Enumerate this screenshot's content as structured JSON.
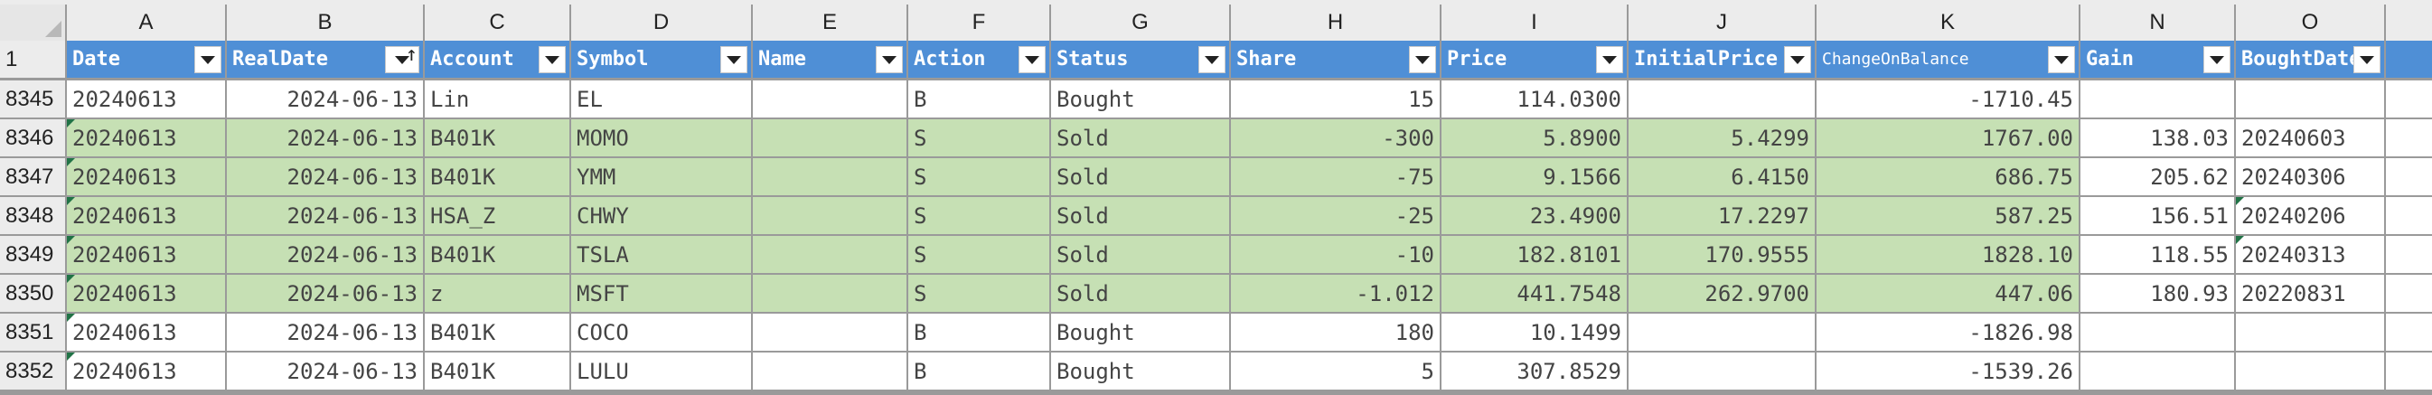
{
  "columns": [
    "A",
    "B",
    "C",
    "D",
    "E",
    "F",
    "G",
    "H",
    "I",
    "J",
    "K",
    "N",
    "O"
  ],
  "header_row_number": "1",
  "headers": [
    "Date",
    "RealDate",
    "Account",
    "Symbol",
    "Name",
    "Action",
    "Status",
    "Share",
    "Price",
    "InitialPrice",
    "ChangeOnBalance",
    "Gain",
    "BoughtDate"
  ],
  "sort_indicator": "↑",
  "rows": [
    {
      "n": "8345",
      "date": "20240613",
      "real": "2024-06-13",
      "account": "Lin",
      "symbol": "EL",
      "name": "",
      "action": "B",
      "status": "Bought",
      "share": "15",
      "price": "114.0300",
      "initial": "",
      "change": "-1710.45",
      "gain": "",
      "bought": ""
    },
    {
      "n": "8346",
      "date": "20240613",
      "real": "2024-06-13",
      "account": "B401K",
      "symbol": "MOMO",
      "name": "",
      "action": "S",
      "status": "Sold",
      "share": "-300",
      "price": "5.8900",
      "initial": "5.4299",
      "change": "1767.00",
      "gain": "138.03",
      "bought": "20240603"
    },
    {
      "n": "8347",
      "date": "20240613",
      "real": "2024-06-13",
      "account": "B401K",
      "symbol": "YMM",
      "name": "",
      "action": "S",
      "status": "Sold",
      "share": "-75",
      "price": "9.1566",
      "initial": "6.4150",
      "change": "686.75",
      "gain": "205.62",
      "bought": "20240306"
    },
    {
      "n": "8348",
      "date": "20240613",
      "real": "2024-06-13",
      "account": "HSA_Z",
      "symbol": "CHWY",
      "name": "",
      "action": "S",
      "status": "Sold",
      "share": "-25",
      "price": "23.4900",
      "initial": "17.2297",
      "change": "587.25",
      "gain": "156.51",
      "bought": "20240206"
    },
    {
      "n": "8349",
      "date": "20240613",
      "real": "2024-06-13",
      "account": "B401K",
      "symbol": "TSLA",
      "name": "",
      "action": "S",
      "status": "Sold",
      "share": "-10",
      "price": "182.8101",
      "initial": "170.9555",
      "change": "1828.10",
      "gain": "118.55",
      "bought": "20240313"
    },
    {
      "n": "8350",
      "date": "20240613",
      "real": "2024-06-13",
      "account": "z",
      "symbol": "MSFT",
      "name": "",
      "action": "S",
      "status": "Sold",
      "share": "-1.012",
      "price": "441.7548",
      "initial": "262.9700",
      "change": "447.06",
      "gain": "180.93",
      "bought": "20220831"
    },
    {
      "n": "8351",
      "date": "20240613",
      "real": "2024-06-13",
      "account": "B401K",
      "symbol": "COCO",
      "name": "",
      "action": "B",
      "status": "Bought",
      "share": "180",
      "price": "10.1499",
      "initial": "",
      "change": "-1826.98",
      "gain": "",
      "bought": ""
    },
    {
      "n": "8352",
      "date": "20240613",
      "real": "2024-06-13",
      "account": "B401K",
      "symbol": "LULU",
      "name": "",
      "action": "B",
      "status": "Bought",
      "share": "5",
      "price": "307.8529",
      "initial": "",
      "change": "-1539.26",
      "gain": "",
      "bought": ""
    }
  ],
  "colors": {
    "header_blue": "#4f8fd6",
    "sold_green": "#c6e0b4",
    "grid": "#9a9a9a"
  }
}
